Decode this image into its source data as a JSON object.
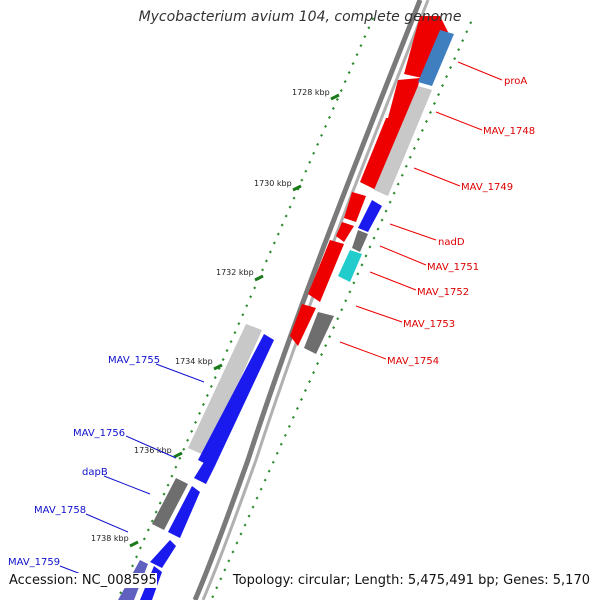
{
  "title": "Mycobacterium avium 104, complete genome",
  "footer": {
    "accession": "Accession: NC_008595",
    "summary": "Topology: circular; Length: 5,475,491 bp; Genes: 5,170"
  },
  "colors": {
    "forward_gene": "#ee0000",
    "reverse_gene": "#1a1aee",
    "pseudo_gene": "#bdbdbd",
    "dark_gene": "#6e6e6e",
    "rna_gene": "#3f7fbf",
    "cyan_gene": "#22cccc",
    "backbone": "#7a7a7a",
    "tick": "#2e8b2e"
  },
  "scale": {
    "labels": [
      "1728 kbp",
      "1730 kbp",
      "1732 kbp",
      "1734 kbp",
      "1736 kbp",
      "1738 kbp"
    ]
  },
  "genes_right": [
    "proA",
    "MAV_1748",
    "MAV_1749",
    "nadD",
    "MAV_1751",
    "MAV_1752",
    "MAV_1753",
    "MAV_1754"
  ],
  "genes_left": [
    "MAV_1755",
    "MAV_1756",
    "dapB",
    "MAV_1758",
    "MAV_1759"
  ]
}
